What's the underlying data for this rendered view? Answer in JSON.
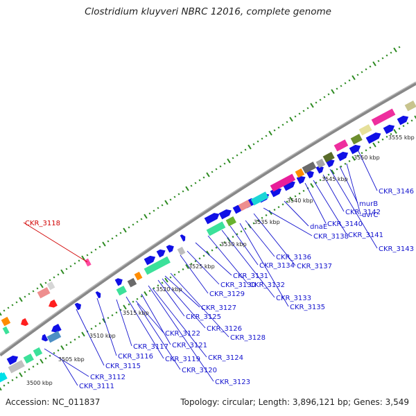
{
  "title": "Clostridium kluyveri NBRC 12016, complete genome",
  "footer": {
    "accession": "Accession: NC_011837",
    "stats": "Topology: circular; Length: 3,896,121 bp; Genes: 3,549"
  },
  "colors": {
    "backbone": "#8c8c8c",
    "tick_dots": "#2e8b22",
    "label_text": "#1212ce",
    "highlight_label": "#d10000",
    "gene_blue": "#1010e6"
  },
  "kbp_ticks": [
    {
      "label": "3500 kbp"
    },
    {
      "label": "3505 kbp"
    },
    {
      "label": "3510 kbp"
    },
    {
      "label": "3515 kbp"
    },
    {
      "label": "3520 kbp"
    },
    {
      "label": "3525 kbp"
    },
    {
      "label": "3530 kbp"
    },
    {
      "label": "3535 kbp"
    },
    {
      "label": "3540 kbp"
    },
    {
      "label": "3545 kbp"
    },
    {
      "label": "3550 kbp"
    },
    {
      "label": "3555 kbp"
    }
  ],
  "genes": [
    {
      "label": "CKR_3111"
    },
    {
      "label": "CKR_3112"
    },
    {
      "label": "CKR_3115"
    },
    {
      "label": "CKR_3116"
    },
    {
      "label": "CKR_3117"
    },
    {
      "label": "CKR_3118"
    },
    {
      "label": "CKR_3119"
    },
    {
      "label": "CKR_3120"
    },
    {
      "label": "CKR_3121"
    },
    {
      "label": "CKR_3122"
    },
    {
      "label": "CKR_3123"
    },
    {
      "label": "CKR_3124"
    },
    {
      "label": "CKR_3125"
    },
    {
      "label": "CKR_3126"
    },
    {
      "label": "CKR_3127"
    },
    {
      "label": "CKR_3128"
    },
    {
      "label": "CKR_3129"
    },
    {
      "label": "CKR_3130"
    },
    {
      "label": "CKR_3131"
    },
    {
      "label": "CKR_3132"
    },
    {
      "label": "CKR_3133"
    },
    {
      "label": "CKR_3134"
    },
    {
      "label": "CKR_3135"
    },
    {
      "label": "CKR_3136"
    },
    {
      "label": "CKR_3137"
    },
    {
      "label": "CKR_3138"
    },
    {
      "label": "dnaE"
    },
    {
      "label": "CKR_3140"
    },
    {
      "label": "CKR_3141"
    },
    {
      "label": "CKR_3142"
    },
    {
      "label": "CKR_3143"
    },
    {
      "label": "murB"
    },
    {
      "label": "uvrC"
    },
    {
      "label": "CKR_3146"
    }
  ]
}
